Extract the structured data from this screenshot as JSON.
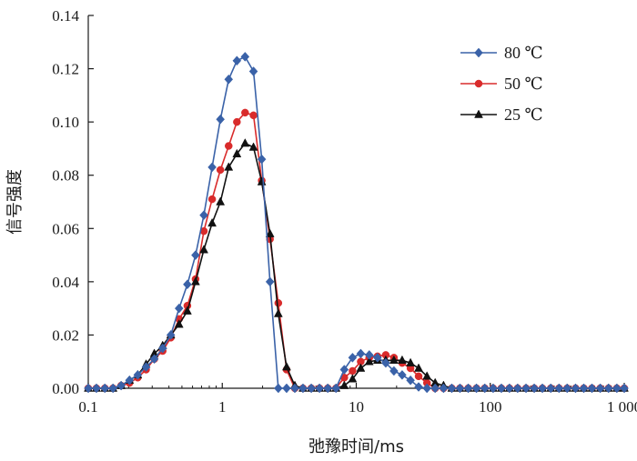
{
  "chart_data": {
    "type": "line",
    "xscale": "log",
    "xlim": [
      0.1,
      1000
    ],
    "ylim": [
      0,
      0.14
    ],
    "xlabel": "弛豫时间/ms",
    "ylabel": "信号强度",
    "grid": false,
    "legend_position": "top-right",
    "xtick_values": [
      0.1,
      1,
      10,
      100,
      1000
    ],
    "xtick_labels": [
      "0.1",
      "1",
      "10",
      "100",
      "1 000"
    ],
    "ytick_values": [
      0,
      0.02,
      0.04,
      0.06,
      0.08,
      0.1,
      0.12,
      0.14
    ],
    "ytick_labels": [
      "0.00",
      "0.02",
      "0.04",
      "0.06",
      "0.08",
      "0.10",
      "0.12",
      "0.14"
    ],
    "series": [
      {
        "name": "80 ℃",
        "color": "#3a62a8",
        "marker": "diamond",
        "points": [
          [
            0.1,
            0.0
          ],
          [
            0.115,
            0.0
          ],
          [
            0.133,
            0.0
          ],
          [
            0.153,
            0.0
          ],
          [
            0.176,
            0.001
          ],
          [
            0.203,
            0.003
          ],
          [
            0.234,
            0.005
          ],
          [
            0.27,
            0.008
          ],
          [
            0.311,
            0.011
          ],
          [
            0.359,
            0.015
          ],
          [
            0.413,
            0.02
          ],
          [
            0.476,
            0.03
          ],
          [
            0.549,
            0.039
          ],
          [
            0.632,
            0.05
          ],
          [
            0.729,
            0.065
          ],
          [
            0.84,
            0.083
          ],
          [
            0.968,
            0.101
          ],
          [
            1.116,
            0.116
          ],
          [
            1.286,
            0.123
          ],
          [
            1.48,
            0.1245
          ],
          [
            1.71,
            0.119
          ],
          [
            1.97,
            0.086
          ],
          [
            2.27,
            0.04
          ],
          [
            2.62,
            0.0
          ],
          [
            3.02,
            0.0
          ],
          [
            3.48,
            0.0
          ],
          [
            4.0,
            0.0
          ],
          [
            4.62,
            0.0
          ],
          [
            5.32,
            0.0
          ],
          [
            6.13,
            0.0
          ],
          [
            7.06,
            0.0
          ],
          [
            8.14,
            0.007
          ],
          [
            9.38,
            0.0115
          ],
          [
            10.8,
            0.013
          ],
          [
            12.5,
            0.0125
          ],
          [
            14.4,
            0.0115
          ],
          [
            16.6,
            0.0095
          ],
          [
            19.1,
            0.0065
          ],
          [
            22.0,
            0.005
          ],
          [
            25.4,
            0.003
          ],
          [
            29.2,
            0.0005
          ],
          [
            33.7,
            0.0
          ],
          [
            38.8,
            0.0
          ],
          [
            44.8,
            0.0
          ],
          [
            51.6,
            0.0
          ],
          [
            59.4,
            0.0
          ],
          [
            68.5,
            0.0
          ],
          [
            78.9,
            0.0
          ],
          [
            91.0,
            0.0
          ],
          [
            105,
            0.0
          ],
          [
            121,
            0.0
          ],
          [
            139,
            0.0
          ],
          [
            160,
            0.0
          ],
          [
            185,
            0.0
          ],
          [
            213,
            0.0
          ],
          [
            245,
            0.0
          ],
          [
            283,
            0.0
          ],
          [
            326,
            0.0
          ],
          [
            375,
            0.0
          ],
          [
            433,
            0.0
          ],
          [
            499,
            0.0
          ],
          [
            574,
            0.0
          ],
          [
            662,
            0.0
          ],
          [
            763,
            0.0
          ],
          [
            880,
            0.0
          ],
          [
            1000,
            0.0
          ]
        ]
      },
      {
        "name": "50 ℃",
        "color": "#d92b2b",
        "marker": "circle",
        "points": [
          [
            0.1,
            0.0
          ],
          [
            0.115,
            0.0
          ],
          [
            0.133,
            0.0
          ],
          [
            0.153,
            0.0
          ],
          [
            0.176,
            0.001
          ],
          [
            0.203,
            0.002
          ],
          [
            0.234,
            0.004
          ],
          [
            0.27,
            0.007
          ],
          [
            0.311,
            0.011
          ],
          [
            0.359,
            0.014
          ],
          [
            0.413,
            0.019
          ],
          [
            0.476,
            0.026
          ],
          [
            0.549,
            0.031
          ],
          [
            0.632,
            0.041
          ],
          [
            0.729,
            0.059
          ],
          [
            0.84,
            0.071
          ],
          [
            0.968,
            0.082
          ],
          [
            1.116,
            0.091
          ],
          [
            1.286,
            0.1
          ],
          [
            1.48,
            0.1035
          ],
          [
            1.71,
            0.1025
          ],
          [
            1.97,
            0.078
          ],
          [
            2.27,
            0.056
          ],
          [
            2.62,
            0.032
          ],
          [
            3.02,
            0.007
          ],
          [
            3.48,
            0.0
          ],
          [
            4.0,
            0.0
          ],
          [
            4.62,
            0.0
          ],
          [
            5.32,
            0.0
          ],
          [
            6.13,
            0.0
          ],
          [
            7.06,
            0.0
          ],
          [
            8.14,
            0.004
          ],
          [
            9.38,
            0.0065
          ],
          [
            10.8,
            0.01
          ],
          [
            12.5,
            0.0115
          ],
          [
            14.4,
            0.012
          ],
          [
            16.6,
            0.0125
          ],
          [
            19.1,
            0.0115
          ],
          [
            22.0,
            0.0095
          ],
          [
            25.4,
            0.0075
          ],
          [
            29.2,
            0.0045
          ],
          [
            33.7,
            0.002
          ],
          [
            38.8,
            0.0
          ],
          [
            44.8,
            0.0
          ],
          [
            51.6,
            0.0
          ],
          [
            59.4,
            0.0
          ],
          [
            68.5,
            0.0
          ],
          [
            78.9,
            0.0
          ],
          [
            91.0,
            0.0
          ],
          [
            105,
            0.0
          ],
          [
            121,
            0.0
          ],
          [
            139,
            0.0
          ],
          [
            160,
            0.0
          ],
          [
            185,
            0.0
          ],
          [
            213,
            0.0
          ],
          [
            245,
            0.0
          ],
          [
            283,
            0.0
          ],
          [
            326,
            0.0
          ],
          [
            375,
            0.0
          ],
          [
            433,
            0.0
          ],
          [
            499,
            0.0
          ],
          [
            574,
            0.0
          ],
          [
            662,
            0.0
          ],
          [
            763,
            0.0
          ],
          [
            880,
            0.0
          ],
          [
            1000,
            0.0
          ]
        ]
      },
      {
        "name": "25 ℃",
        "color": "#111111",
        "marker": "triangle",
        "points": [
          [
            0.1,
            0.0
          ],
          [
            0.115,
            0.0
          ],
          [
            0.133,
            0.0
          ],
          [
            0.153,
            0.0
          ],
          [
            0.176,
            0.001
          ],
          [
            0.203,
            0.003
          ],
          [
            0.234,
            0.005
          ],
          [
            0.27,
            0.009
          ],
          [
            0.311,
            0.013
          ],
          [
            0.359,
            0.016
          ],
          [
            0.413,
            0.02
          ],
          [
            0.476,
            0.024
          ],
          [
            0.549,
            0.029
          ],
          [
            0.632,
            0.04
          ],
          [
            0.729,
            0.052
          ],
          [
            0.84,
            0.062
          ],
          [
            0.968,
            0.07
          ],
          [
            1.116,
            0.083
          ],
          [
            1.286,
            0.088
          ],
          [
            1.48,
            0.092
          ],
          [
            1.71,
            0.0905
          ],
          [
            1.97,
            0.0775
          ],
          [
            2.27,
            0.058
          ],
          [
            2.62,
            0.028
          ],
          [
            3.02,
            0.008
          ],
          [
            3.48,
            0.001
          ],
          [
            4.0,
            0.0
          ],
          [
            4.62,
            0.0
          ],
          [
            5.32,
            0.0
          ],
          [
            6.13,
            0.0
          ],
          [
            7.06,
            0.0
          ],
          [
            8.14,
            0.001
          ],
          [
            9.38,
            0.0035
          ],
          [
            10.8,
            0.0075
          ],
          [
            12.5,
            0.01
          ],
          [
            14.4,
            0.0105
          ],
          [
            16.6,
            0.0105
          ],
          [
            19.1,
            0.0105
          ],
          [
            22.0,
            0.0105
          ],
          [
            25.4,
            0.0095
          ],
          [
            29.2,
            0.0075
          ],
          [
            33.7,
            0.0045
          ],
          [
            38.8,
            0.002
          ],
          [
            44.8,
            0.001
          ],
          [
            51.6,
            0.0
          ],
          [
            59.4,
            0.0
          ],
          [
            68.5,
            0.0
          ],
          [
            78.9,
            0.0
          ],
          [
            91.0,
            0.0
          ],
          [
            105,
            0.0
          ],
          [
            121,
            0.0
          ],
          [
            139,
            0.0
          ],
          [
            160,
            0.0
          ],
          [
            185,
            0.0
          ],
          [
            213,
            0.0
          ],
          [
            245,
            0.0
          ],
          [
            283,
            0.0
          ],
          [
            326,
            0.0
          ],
          [
            375,
            0.0
          ],
          [
            433,
            0.0
          ],
          [
            499,
            0.0
          ],
          [
            574,
            0.0
          ],
          [
            662,
            0.0
          ],
          [
            763,
            0.0
          ],
          [
            880,
            0.0
          ],
          [
            1000,
            0.0
          ]
        ]
      }
    ]
  }
}
